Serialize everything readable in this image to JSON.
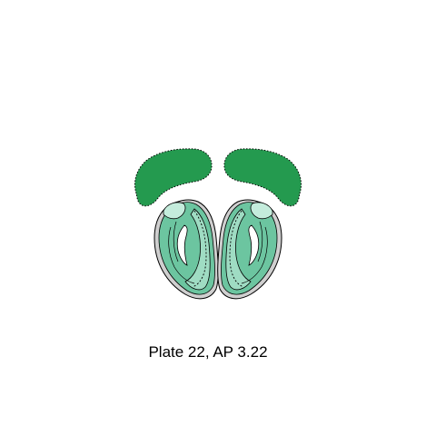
{
  "caption": {
    "text": "Plate 22, AP 3.22"
  },
  "colors": {
    "dark_region": "#249a4f",
    "mid_region": "#6cc5a0",
    "light_region": "#9fdcc3",
    "pale_region": "#c4ecdc",
    "outer_gray": "#cfcfcf",
    "outline": "#000000"
  }
}
